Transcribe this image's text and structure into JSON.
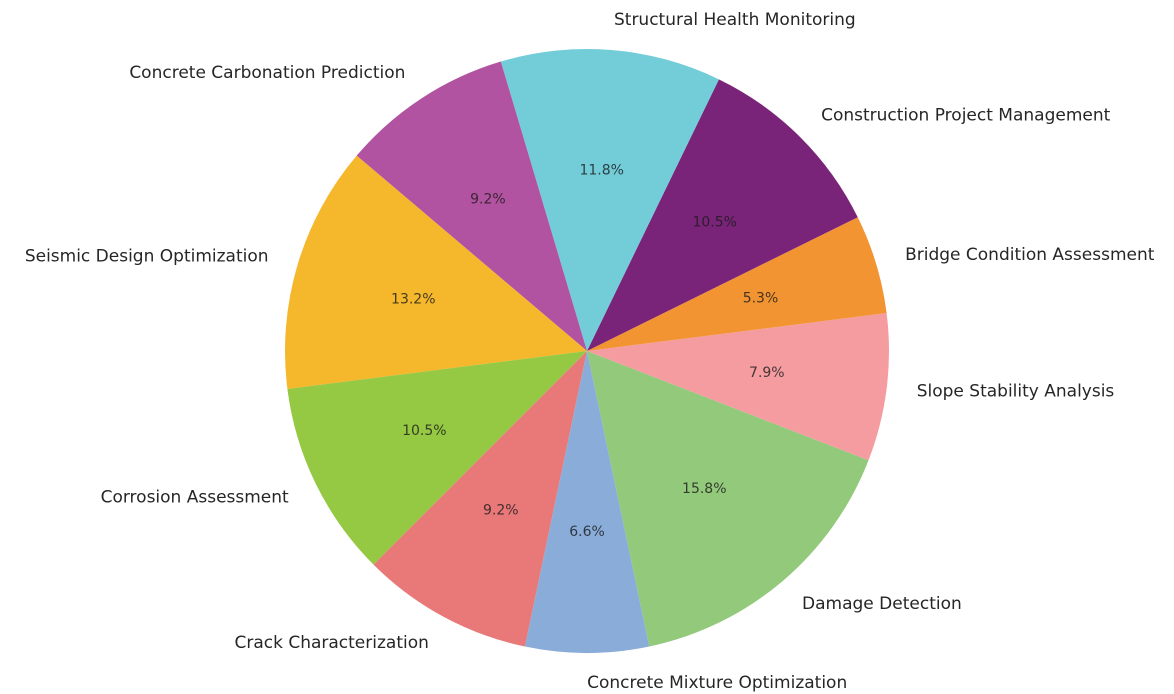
{
  "chart_data": {
    "type": "pie",
    "categories": [
      "Damage Detection",
      "Slope Stability Analysis",
      "Bridge Condition Assessment",
      "Construction Project Management",
      "Structural Health Monitoring",
      "Concrete Carbonation Prediction",
      "Seismic Design Optimization",
      "Corrosion Assessment",
      "Crack Characterization",
      "Concrete Mixture Optimization"
    ],
    "values": [
      15.8,
      7.9,
      5.3,
      10.5,
      11.8,
      9.2,
      13.2,
      10.5,
      9.2,
      6.6
    ],
    "value_labels": [
      "15.8%",
      "7.9%",
      "5.3%",
      "10.5%",
      "11.8%",
      "9.2%",
      "13.2%",
      "10.5%",
      "9.2%",
      "6.6%"
    ],
    "colors": [
      "#93c97b",
      "#f59ca1",
      "#f29432",
      "#7a2479",
      "#72cdd9",
      "#b153a0",
      "#f5b72c",
      "#95c843",
      "#e97979",
      "#89acd9"
    ]
  }
}
